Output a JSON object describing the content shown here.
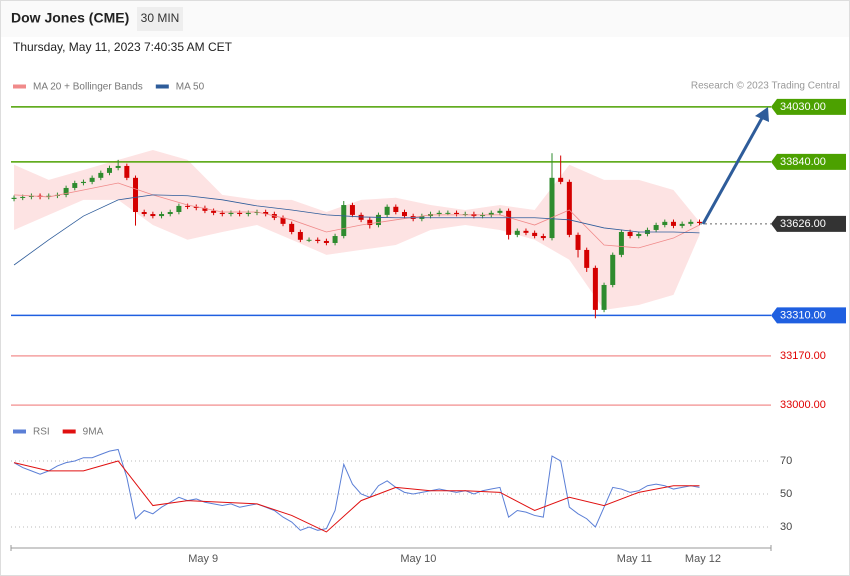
{
  "chart_data": {
    "type": "candlestick",
    "title": "Dow Jones (CME)",
    "timeframe": "30 MIN",
    "timestamp": "Thursday, May 11, 2023 7:40:35 AM CET",
    "credit": "Research © 2023 Trading Central",
    "xlim": [
      -0.35,
      87.24
    ],
    "xticks": [
      {
        "value": 21.8,
        "label": "May 9"
      },
      {
        "value": 46.6,
        "label": "May 10"
      },
      {
        "value": 71.5,
        "label": "May 11"
      },
      {
        "value": 79.4,
        "label": "May 12"
      }
    ],
    "ylim": [
      32966,
      34071
    ],
    "candles": {
      "up_color": "#2e8b2e",
      "down_color": "#d40000",
      "open": [
        33712,
        33716,
        33719,
        33723,
        33719,
        33723,
        33726,
        33750,
        33767,
        33771,
        33785,
        33802,
        33819,
        33826,
        33785,
        33667,
        33660,
        33653,
        33660,
        33667,
        33688,
        33685,
        33681,
        33671,
        33664,
        33660,
        33664,
        33660,
        33664,
        33667,
        33660,
        33647,
        33626,
        33598,
        33571,
        33571,
        33567,
        33560,
        33584,
        33691,
        33657,
        33640,
        33622,
        33657,
        33685,
        33667,
        33653,
        33643,
        33653,
        33660,
        33664,
        33664,
        33660,
        33660,
        33653,
        33657,
        33664,
        33671,
        33588,
        33602,
        33595,
        33584,
        33577,
        33785,
        33771,
        33588,
        33536,
        33474,
        33329,
        33415,
        33519,
        33598,
        33584,
        33591,
        33605,
        33622,
        33633,
        33619,
        33626,
        33633
      ],
      "high": [
        33724,
        33727,
        33731,
        33731,
        33731,
        33734,
        33758,
        33775,
        33779,
        33793,
        33810,
        33827,
        33847,
        33834,
        33793,
        33675,
        33668,
        33668,
        33675,
        33696,
        33696,
        33693,
        33689,
        33679,
        33672,
        33672,
        33672,
        33672,
        33675,
        33675,
        33668,
        33655,
        33634,
        33606,
        33579,
        33579,
        33575,
        33592,
        33705,
        33699,
        33665,
        33648,
        33665,
        33693,
        33693,
        33675,
        33661,
        33661,
        33668,
        33672,
        33672,
        33672,
        33668,
        33668,
        33665,
        33672,
        33679,
        33679,
        33610,
        33610,
        33603,
        33592,
        33870,
        33862,
        33779,
        33596,
        33544,
        33482,
        33423,
        33527,
        33606,
        33606,
        33599,
        33613,
        33630,
        33641,
        33641,
        33634,
        33641,
        33641
      ],
      "low": [
        33704,
        33708,
        33711,
        33711,
        33711,
        33715,
        33718,
        33742,
        33759,
        33763,
        33777,
        33794,
        33811,
        33777,
        33620,
        33652,
        33645,
        33645,
        33652,
        33659,
        33677,
        33673,
        33663,
        33656,
        33652,
        33652,
        33652,
        33652,
        33656,
        33652,
        33639,
        33618,
        33590,
        33563,
        33563,
        33559,
        33552,
        33552,
        33576,
        33649,
        33632,
        33610,
        33614,
        33649,
        33659,
        33645,
        33635,
        33635,
        33645,
        33652,
        33656,
        33652,
        33652,
        33645,
        33645,
        33649,
        33656,
        33572,
        33580,
        33587,
        33576,
        33569,
        33569,
        33763,
        33580,
        33510,
        33460,
        33300,
        33321,
        33407,
        33511,
        33576,
        33576,
        33583,
        33597,
        33614,
        33611,
        33611,
        33618,
        33621
      ],
      "close": [
        33716,
        33719,
        33723,
        33719,
        33723,
        33726,
        33750,
        33767,
        33771,
        33785,
        33802,
        33819,
        33826,
        33785,
        33667,
        33660,
        33653,
        33660,
        33667,
        33688,
        33685,
        33681,
        33671,
        33664,
        33660,
        33664,
        33660,
        33664,
        33667,
        33660,
        33647,
        33626,
        33598,
        33571,
        33571,
        33567,
        33560,
        33584,
        33691,
        33657,
        33640,
        33622,
        33657,
        33685,
        33667,
        33653,
        33643,
        33653,
        33660,
        33664,
        33664,
        33660,
        33660,
        33653,
        33657,
        33664,
        33671,
        33588,
        33602,
        33595,
        33584,
        33577,
        33785,
        33771,
        33588,
        33536,
        33474,
        33329,
        33415,
        33519,
        33598,
        33584,
        33591,
        33605,
        33622,
        33633,
        33619,
        33626,
        33633,
        33629
      ]
    },
    "series": [
      {
        "name": "MA 20 + Bollinger Bands",
        "color": "#f08a8a",
        "band_color": "#fde3e3",
        "x": [
          0,
          4,
          8,
          12,
          16,
          20,
          24,
          28,
          32,
          36,
          40,
          44,
          48,
          52,
          56,
          60,
          64,
          68,
          72,
          76,
          79
        ],
        "values": [
          33726,
          33719,
          33743,
          33767,
          33726,
          33691,
          33667,
          33667,
          33640,
          33598,
          33622,
          33640,
          33657,
          33657,
          33657,
          33622,
          33674,
          33553,
          33543,
          33577,
          33622
        ],
        "upper": [
          33830,
          33778,
          33812,
          33847,
          33881,
          33847,
          33726,
          33709,
          33709,
          33667,
          33709,
          33716,
          33691,
          33674,
          33691,
          33674,
          33830,
          33778,
          33778,
          33743,
          33633
        ],
        "lower": [
          33605,
          33657,
          33709,
          33709,
          33622,
          33571,
          33598,
          33622,
          33571,
          33519,
          33536,
          33553,
          33605,
          33622,
          33605,
          33571,
          33502,
          33329,
          33346,
          33381,
          33588
        ]
      },
      {
        "name": "MA 50",
        "color": "#2e5c9a",
        "x": [
          0,
          4,
          8,
          12,
          16,
          20,
          24,
          28,
          32,
          36,
          40,
          44,
          48,
          52,
          56,
          60,
          64,
          68,
          72,
          76,
          79
        ],
        "values": [
          33484,
          33571,
          33653,
          33709,
          33726,
          33723,
          33709,
          33688,
          33674,
          33657,
          33650,
          33647,
          33647,
          33647,
          33647,
          33647,
          33640,
          33612,
          33598,
          33598,
          33595
        ]
      }
    ],
    "levels": [
      {
        "value": 34030,
        "label": "34030.00",
        "color": "#4ca100",
        "style": "filled"
      },
      {
        "value": 33840,
        "label": "33840.00",
        "color": "#4ca100",
        "style": "filled"
      },
      {
        "value": 33626,
        "label": "33626.00",
        "color": "#333333",
        "style": "current"
      },
      {
        "value": 33310,
        "label": "33310.00",
        "color": "#1f5fe0",
        "style": "filled"
      },
      {
        "value": 33170,
        "label": "33170.00",
        "color": "#f4a0a0",
        "style": "text"
      },
      {
        "value": 33000,
        "label": "33000.00",
        "color": "#f4a0a0",
        "style": "text"
      }
    ],
    "rsi": {
      "ylim": [
        20,
        80
      ],
      "yticks": [
        70,
        50,
        30
      ],
      "series": [
        {
          "name": "RSI",
          "color": "#5b7fd6",
          "values": [
            69,
            66,
            64,
            62,
            64,
            67,
            69,
            70,
            72,
            72,
            74,
            76,
            77,
            60,
            35,
            40,
            38,
            42,
            45,
            48,
            46,
            47,
            45,
            44,
            43,
            44,
            42,
            43,
            44,
            42,
            40,
            36,
            33,
            28,
            30,
            28,
            29,
            40,
            68,
            56,
            50,
            48,
            55,
            58,
            54,
            51,
            50,
            51,
            52,
            53,
            52,
            51,
            52,
            50,
            52,
            53,
            54,
            36,
            40,
            39,
            37,
            36,
            73,
            70,
            42,
            38,
            35,
            30,
            42,
            54,
            53,
            51,
            52,
            55,
            56,
            55,
            53,
            54,
            55,
            54
          ]
        },
        {
          "name": "9MA",
          "color": "#e01010",
          "x": [
            0,
            4,
            8,
            12,
            16,
            20,
            24,
            28,
            32,
            36,
            40,
            44,
            48,
            52,
            56,
            60,
            64,
            68,
            72,
            76,
            79
          ],
          "values": [
            69,
            64,
            64,
            70,
            43,
            46,
            45,
            44,
            37,
            27,
            46,
            54,
            52,
            52,
            51,
            40,
            48,
            43,
            51,
            55,
            55
          ]
        }
      ]
    }
  }
}
